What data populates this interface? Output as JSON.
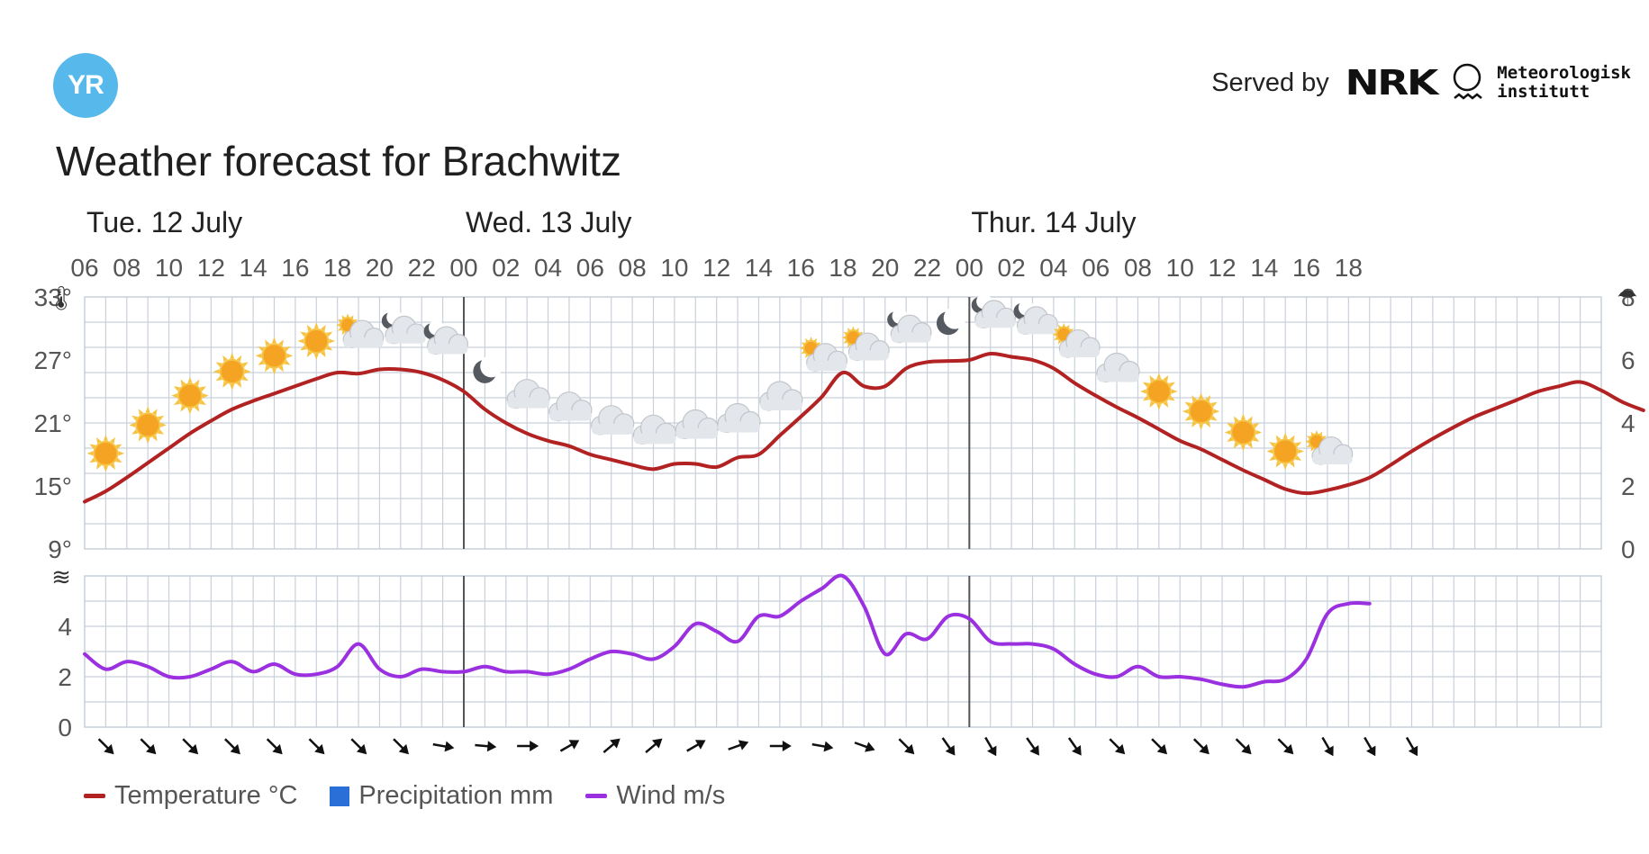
{
  "header": {
    "logo_text": "YR",
    "served_label": "Served by",
    "nrk_label": "NRK",
    "met_line1": "Meteorologisk",
    "met_line2": "institutt"
  },
  "title": "Weather forecast for Brachwitz",
  "legend": {
    "temperature": "Temperature °C",
    "precipitation": "Precipitation mm",
    "wind": "Wind m/s"
  },
  "colors": {
    "temperature": "#b22222",
    "precipitation": "#2a6ed8",
    "wind": "#9b30e0",
    "grid": "#c8d0da",
    "day_divider": "#555555"
  },
  "icons": {
    "temp_axis": "thermometer-icon",
    "precip_axis": "umbrella-icon",
    "wind_axis": "wind-icon"
  },
  "chart_data": {
    "type": "line",
    "days": [
      {
        "label": "Tue. 12 July",
        "start_index": 0
      },
      {
        "label": "Wed. 13 July",
        "start_index": 18
      },
      {
        "label": "Thur. 14 July",
        "start_index": 42
      }
    ],
    "hour_labels": [
      "06",
      "08",
      "10",
      "12",
      "14",
      "16",
      "18",
      "20",
      "22",
      "00",
      "02",
      "04",
      "06",
      "08",
      "10",
      "12",
      "14",
      "16",
      "18",
      "20",
      "22",
      "00",
      "02",
      "04",
      "06",
      "08",
      "10",
      "12",
      "14",
      "16",
      "18"
    ],
    "temperature": {
      "ylabels": [
        "33°",
        "27°",
        "21°",
        "15°",
        "9°"
      ],
      "ylim": [
        9,
        33
      ],
      "values": [
        13.5,
        14.5,
        15.8,
        17.2,
        18.6,
        20,
        21.2,
        22.3,
        23.1,
        23.8,
        24.5,
        25.2,
        25.8,
        25.7,
        26.1,
        26.1,
        25.8,
        25.1,
        24,
        22.3,
        21,
        20,
        19.3,
        18.8,
        18,
        17.5,
        17,
        16.6,
        17.1,
        17.1,
        16.8,
        17.7,
        18,
        19.8,
        21.6,
        23.5,
        25.8,
        24.5,
        24.5,
        26.2,
        26.8,
        26.9,
        27,
        27.6,
        27.3,
        27,
        26.2,
        24.8,
        23.6,
        22.5,
        21.5,
        20.4,
        19.3,
        18.5,
        17.5,
        16.5,
        15.6,
        14.7,
        14.3,
        14.6,
        15.1,
        15.8,
        17,
        18.3,
        19.5,
        20.6,
        21.6,
        22.4,
        23.2,
        24,
        24.5,
        24.9,
        24.1,
        23,
        22.2
      ]
    },
    "precipitation": {
      "ylabels": [
        "8",
        "6",
        "4",
        "2",
        "0"
      ],
      "ylim": [
        0,
        8
      ],
      "values": []
    },
    "wind": {
      "ylabels": [
        "4",
        "2",
        "0"
      ],
      "ylim": [
        0,
        6
      ],
      "values": [
        2.9,
        2.3,
        2.6,
        2.4,
        2,
        2,
        2.3,
        2.6,
        2.2,
        2.5,
        2.1,
        2.1,
        2.4,
        3.3,
        2.3,
        2,
        2.3,
        2.2,
        2.2,
        2.4,
        2.2,
        2.2,
        2.1,
        2.3,
        2.7,
        3,
        2.9,
        2.7,
        3.2,
        4.1,
        3.8,
        3.4,
        4.4,
        4.4,
        5,
        5.5,
        6,
        4.8,
        2.9,
        3.7,
        3.5,
        4.4,
        4.3,
        3.4,
        3.3,
        3.3,
        3.1,
        2.5,
        2.1,
        2,
        2.4,
        2,
        2,
        1.9,
        1.7,
        1.6,
        1.8,
        1.9,
        2.7,
        4.5,
        4.9,
        4.9
      ]
    },
    "weather_symbols": [
      {
        "i": 1,
        "t": "sun"
      },
      {
        "i": 3,
        "t": "sun"
      },
      {
        "i": 5,
        "t": "sun"
      },
      {
        "i": 7,
        "t": "sun"
      },
      {
        "i": 9,
        "t": "sun"
      },
      {
        "i": 11,
        "t": "sun"
      },
      {
        "i": 13,
        "t": "partly-cloudy-day"
      },
      {
        "i": 15,
        "t": "partly-cloudy-night"
      },
      {
        "i": 17,
        "t": "partly-cloudy-night"
      },
      {
        "i": 19,
        "t": "moon"
      },
      {
        "i": 21,
        "t": "cloud"
      },
      {
        "i": 23,
        "t": "cloud"
      },
      {
        "i": 25,
        "t": "cloud"
      },
      {
        "i": 27,
        "t": "cloud"
      },
      {
        "i": 29,
        "t": "cloud"
      },
      {
        "i": 31,
        "t": "cloud"
      },
      {
        "i": 33,
        "t": "cloud"
      },
      {
        "i": 35,
        "t": "partly-cloudy-day"
      },
      {
        "i": 37,
        "t": "partly-cloudy-day"
      },
      {
        "i": 39,
        "t": "partly-cloudy-night"
      },
      {
        "i": 41,
        "t": "moon"
      },
      {
        "i": 43,
        "t": "partly-cloudy-night"
      },
      {
        "i": 45,
        "t": "partly-cloudy-night"
      },
      {
        "i": 47,
        "t": "partly-cloudy-day"
      },
      {
        "i": 49,
        "t": "cloud"
      },
      {
        "i": 51,
        "t": "sun"
      },
      {
        "i": 53,
        "t": "sun"
      },
      {
        "i": 55,
        "t": "sun"
      },
      {
        "i": 57,
        "t": "sun"
      },
      {
        "i": 59,
        "t": "partly-cloudy-day"
      }
    ],
    "wind_direction_deg": [
      135,
      135,
      135,
      135,
      135,
      135,
      135,
      135,
      100,
      95,
      90,
      60,
      50,
      50,
      60,
      70,
      90,
      100,
      110,
      135,
      145,
      150,
      145,
      145,
      135,
      135,
      135,
      135,
      135,
      150,
      150,
      150
    ]
  }
}
